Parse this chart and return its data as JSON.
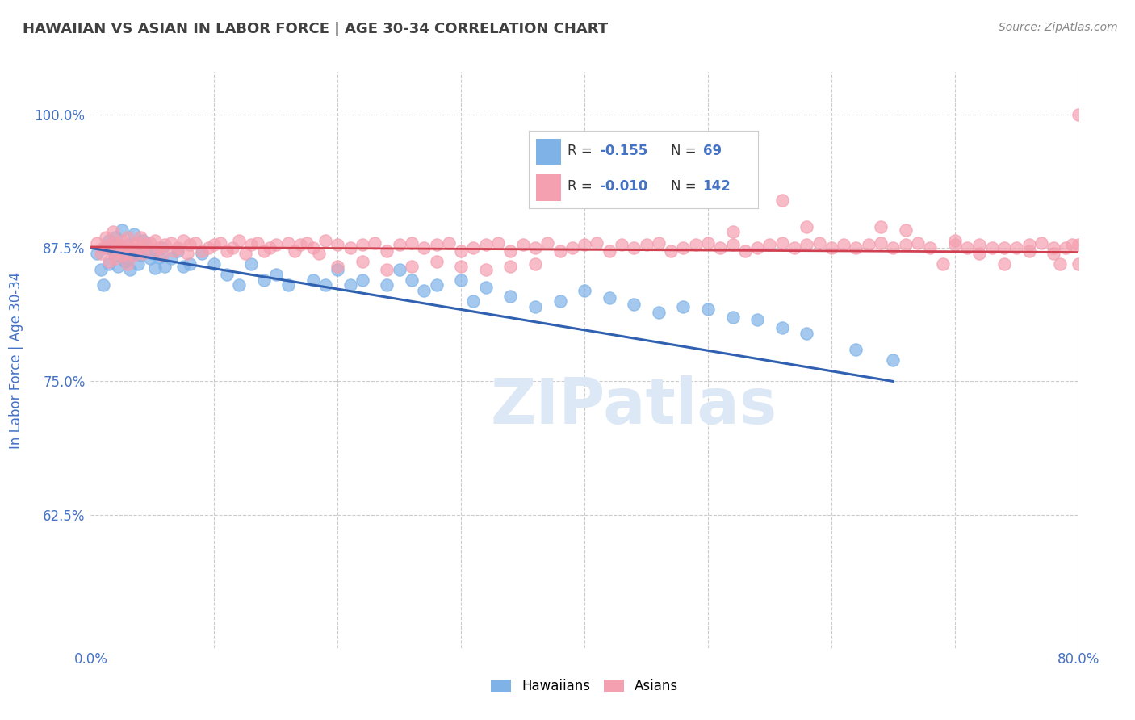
{
  "title": "HAWAIIAN VS ASIAN IN LABOR FORCE | AGE 30-34 CORRELATION CHART",
  "source_text": "Source: ZipAtlas.com",
  "ylabel": "In Labor Force | Age 30-34",
  "xlim": [
    0.0,
    0.8
  ],
  "ylim": [
    0.5,
    1.04
  ],
  "xticks": [
    0.0,
    0.1,
    0.2,
    0.3,
    0.4,
    0.5,
    0.6,
    0.7,
    0.8
  ],
  "xticklabels": [
    "0.0%",
    "",
    "",
    "",
    "",
    "",
    "",
    "",
    "80.0%"
  ],
  "ytick_positions": [
    0.625,
    0.75,
    0.875,
    1.0
  ],
  "yticklabels": [
    "62.5%",
    "75.0%",
    "87.5%",
    "100.0%"
  ],
  "hawaiian_color": "#7fb3e8",
  "asian_color": "#f4a0b0",
  "hawaiian_line_color": "#3060b0",
  "asian_line_color": "#d04050",
  "hawaiian_R": -0.155,
  "hawaiian_N": 69,
  "asian_R": -0.01,
  "asian_N": 142,
  "title_color": "#404040",
  "watermark_text": "ZIPatlas",
  "watermark_color": "#dce8f5",
  "grid_color": "#cccccc",
  "background_color": "#ffffff",
  "hawaiian_x": [
    0.005,
    0.008,
    0.01,
    0.012,
    0.015,
    0.015,
    0.018,
    0.02,
    0.02,
    0.022,
    0.025,
    0.025,
    0.028,
    0.03,
    0.03,
    0.032,
    0.035,
    0.035,
    0.038,
    0.04,
    0.04,
    0.042,
    0.045,
    0.048,
    0.05,
    0.052,
    0.055,
    0.058,
    0.06,
    0.065,
    0.07,
    0.075,
    0.08,
    0.09,
    0.1,
    0.11,
    0.12,
    0.13,
    0.14,
    0.15,
    0.16,
    0.18,
    0.19,
    0.2,
    0.21,
    0.22,
    0.24,
    0.25,
    0.26,
    0.27,
    0.28,
    0.3,
    0.31,
    0.32,
    0.34,
    0.36,
    0.38,
    0.4,
    0.42,
    0.44,
    0.46,
    0.48,
    0.5,
    0.52,
    0.54,
    0.56,
    0.58,
    0.62,
    0.65
  ],
  "hawaiian_y": [
    0.87,
    0.855,
    0.84,
    0.875,
    0.86,
    0.882,
    0.872,
    0.868,
    0.885,
    0.858,
    0.876,
    0.892,
    0.862,
    0.878,
    0.865,
    0.855,
    0.87,
    0.888,
    0.86,
    0.875,
    0.868,
    0.882,
    0.872,
    0.865,
    0.87,
    0.856,
    0.866,
    0.875,
    0.858,
    0.865,
    0.872,
    0.858,
    0.86,
    0.87,
    0.86,
    0.85,
    0.84,
    0.86,
    0.845,
    0.85,
    0.84,
    0.845,
    0.84,
    0.855,
    0.84,
    0.845,
    0.84,
    0.855,
    0.845,
    0.835,
    0.84,
    0.845,
    0.825,
    0.838,
    0.83,
    0.82,
    0.825,
    0.835,
    0.828,
    0.822,
    0.815,
    0.82,
    0.818,
    0.81,
    0.808,
    0.8,
    0.795,
    0.78,
    0.77
  ],
  "asian_x": [
    0.005,
    0.008,
    0.01,
    0.012,
    0.015,
    0.015,
    0.018,
    0.018,
    0.02,
    0.02,
    0.022,
    0.025,
    0.025,
    0.028,
    0.03,
    0.03,
    0.03,
    0.032,
    0.035,
    0.035,
    0.038,
    0.04,
    0.04,
    0.042,
    0.045,
    0.048,
    0.05,
    0.052,
    0.055,
    0.058,
    0.06,
    0.065,
    0.068,
    0.07,
    0.075,
    0.078,
    0.08,
    0.085,
    0.09,
    0.095,
    0.1,
    0.105,
    0.11,
    0.115,
    0.12,
    0.125,
    0.13,
    0.135,
    0.14,
    0.145,
    0.15,
    0.16,
    0.165,
    0.17,
    0.175,
    0.18,
    0.185,
    0.19,
    0.2,
    0.21,
    0.22,
    0.23,
    0.24,
    0.25,
    0.26,
    0.27,
    0.28,
    0.29,
    0.3,
    0.31,
    0.32,
    0.33,
    0.34,
    0.35,
    0.36,
    0.37,
    0.38,
    0.39,
    0.4,
    0.41,
    0.42,
    0.43,
    0.44,
    0.45,
    0.46,
    0.47,
    0.48,
    0.49,
    0.5,
    0.51,
    0.52,
    0.53,
    0.54,
    0.55,
    0.56,
    0.57,
    0.58,
    0.59,
    0.6,
    0.61,
    0.62,
    0.63,
    0.64,
    0.65,
    0.66,
    0.67,
    0.68,
    0.69,
    0.7,
    0.71,
    0.72,
    0.73,
    0.74,
    0.75,
    0.76,
    0.77,
    0.78,
    0.785,
    0.79,
    0.795,
    0.8,
    0.8,
    0.8,
    0.56,
    0.58,
    0.52,
    0.64,
    0.66,
    0.7,
    0.72,
    0.74,
    0.76,
    0.78,
    0.2,
    0.22,
    0.24,
    0.26,
    0.28,
    0.3,
    0.32,
    0.34,
    0.36
  ],
  "asian_y": [
    0.88,
    0.87,
    0.875,
    0.885,
    0.878,
    0.862,
    0.872,
    0.89,
    0.88,
    0.865,
    0.878,
    0.882,
    0.868,
    0.875,
    0.885,
    0.87,
    0.86,
    0.875,
    0.878,
    0.868,
    0.88,
    0.875,
    0.885,
    0.87,
    0.878,
    0.88,
    0.872,
    0.882,
    0.875,
    0.868,
    0.878,
    0.88,
    0.872,
    0.875,
    0.882,
    0.87,
    0.878,
    0.88,
    0.872,
    0.875,
    0.878,
    0.88,
    0.872,
    0.875,
    0.882,
    0.87,
    0.878,
    0.88,
    0.872,
    0.875,
    0.878,
    0.88,
    0.872,
    0.878,
    0.88,
    0.875,
    0.87,
    0.882,
    0.878,
    0.875,
    0.878,
    0.88,
    0.872,
    0.878,
    0.88,
    0.875,
    0.878,
    0.88,
    0.872,
    0.875,
    0.878,
    0.88,
    0.872,
    0.878,
    0.875,
    0.88,
    0.872,
    0.875,
    0.878,
    0.88,
    0.872,
    0.878,
    0.875,
    0.878,
    0.88,
    0.872,
    0.875,
    0.878,
    0.88,
    0.875,
    0.878,
    0.872,
    0.875,
    0.878,
    0.88,
    0.875,
    0.878,
    0.88,
    0.875,
    0.878,
    0.875,
    0.878,
    0.88,
    0.875,
    0.878,
    0.88,
    0.875,
    0.86,
    0.878,
    0.875,
    0.87,
    0.875,
    0.86,
    0.875,
    0.878,
    0.88,
    0.875,
    0.86,
    0.875,
    0.878,
    0.86,
    0.878,
    1.0,
    0.92,
    0.895,
    0.89,
    0.895,
    0.892,
    0.882,
    0.878,
    0.875,
    0.872,
    0.87,
    0.858,
    0.862,
    0.855,
    0.858,
    0.862,
    0.858,
    0.855,
    0.858,
    0.86
  ]
}
